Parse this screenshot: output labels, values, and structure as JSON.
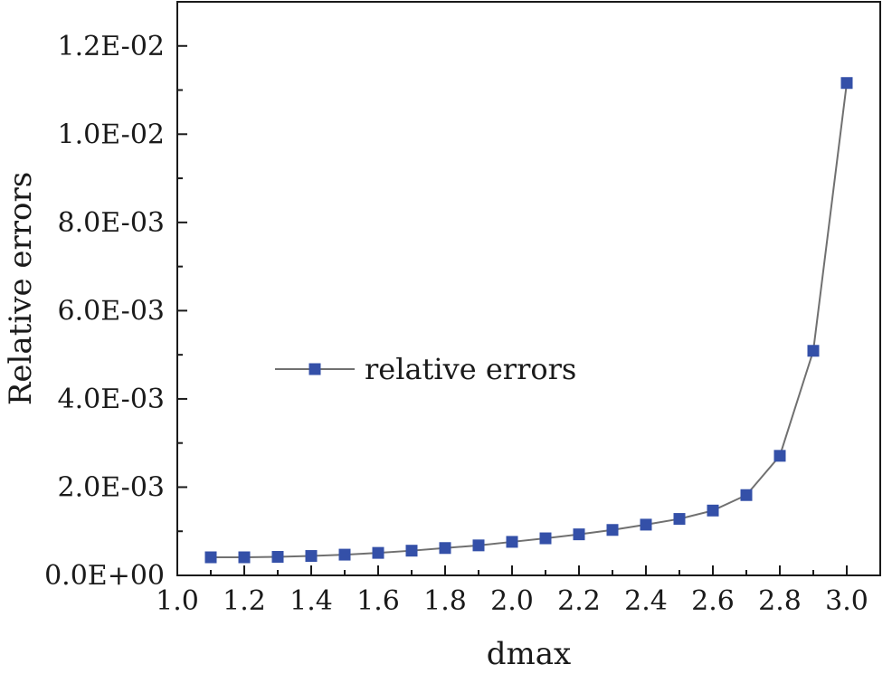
{
  "chart_data": {
    "type": "line",
    "title": "",
    "xlabel": "dmax",
    "ylabel": "Relative errors",
    "xlim": [
      1.0,
      3.1
    ],
    "ylim": [
      0.0,
      0.013
    ],
    "x_ticks": [
      1.0,
      1.2,
      1.4,
      1.6,
      1.8,
      2.0,
      2.2,
      2.4,
      2.6,
      2.8,
      3.0
    ],
    "x_tick_labels": [
      "1.0",
      "1.2",
      "1.4",
      "1.6",
      "1.8",
      "2.0",
      "2.2",
      "2.4",
      "2.6",
      "2.8",
      "3.0"
    ],
    "y_ticks": [
      0.0,
      0.002,
      0.004,
      0.006,
      0.008,
      0.01,
      0.012
    ],
    "y_tick_labels": [
      "0.0E+00",
      "2.0E-03",
      "4.0E-03",
      "6.0E-03",
      "8.0E-03",
      "1.0E-02",
      "1.2E-02"
    ],
    "grid": false,
    "legend_position": "center-left",
    "series": [
      {
        "name": "relative errors",
        "marker": "square",
        "marker_color": "#3450a8",
        "line_color": "#707070",
        "x": [
          1.1,
          1.2,
          1.3,
          1.4,
          1.5,
          1.6,
          1.7,
          1.8,
          1.9,
          2.0,
          2.1,
          2.2,
          2.3,
          2.4,
          2.5,
          2.6,
          2.7,
          2.8,
          2.9,
          3.0
        ],
        "y": [
          0.00041,
          0.00041,
          0.00042,
          0.00044,
          0.00047,
          0.00051,
          0.00056,
          0.00062,
          0.00068,
          0.00076,
          0.00084,
          0.00093,
          0.00103,
          0.00115,
          0.00128,
          0.00147,
          0.00182,
          0.00271,
          0.00509,
          0.01116
        ]
      }
    ]
  }
}
